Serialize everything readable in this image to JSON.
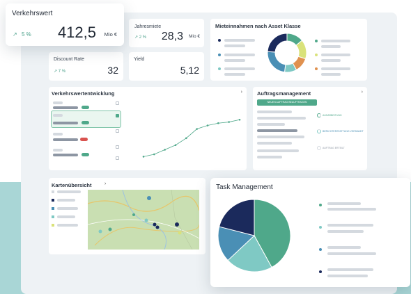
{
  "colors": {
    "navy": "#1b2a5c",
    "blue": "#4a8fb5",
    "teal_light": "#7fc9c4",
    "green": "#4fa88a",
    "lime": "#d9e27a",
    "orange": "#e0914f",
    "accent_button": "#4fa88a"
  },
  "kpi_verkehrswert": {
    "title": "Verkehrswert",
    "change": "5 %",
    "value": "412,5",
    "unit": "Mio €",
    "icon": "trend-up-arrow-icon"
  },
  "kpi_jahresmiete": {
    "title": "Jahresmiete",
    "change": "2 %",
    "value": "28,3",
    "unit": "Mio €"
  },
  "kpi_discount": {
    "title": "Discount Rate",
    "change": "7 %",
    "value": "32"
  },
  "kpi_yield": {
    "title": "Yield",
    "value": "5,12"
  },
  "mieteinnahmen": {
    "title": "Mieteinnahmen nach Asset Klasse"
  },
  "verkehrswertentwicklung": {
    "title": "Verkehrswertentwicklung",
    "chevron": "›"
  },
  "auftragsmanagement": {
    "title": "Auftragsmanagement",
    "chevron": "›",
    "button_label": "NEUEN AUFTRAG BEAUFTRAGEN",
    "statuses": [
      "AUSARBEITUNG",
      "BERICHTERSTATTUNG VERSANDT",
      "AUFTRAG ERTEILT"
    ]
  },
  "kartenuebersicht": {
    "title": "Kartenübersicht",
    "chevron": "›"
  },
  "task_management": {
    "title": "Task Management"
  },
  "chart_data": [
    {
      "type": "pie",
      "name": "donut",
      "values": [
        14,
        16,
        12,
        10,
        24,
        24
      ],
      "colors": [
        "#4fa88a",
        "#d9e27a",
        "#e0914f",
        "#7fc9c4",
        "#4a8fb5",
        "#1b2a5c"
      ]
    },
    {
      "type": "line",
      "x": [
        1,
        2,
        3,
        4,
        5,
        6,
        7,
        8,
        9,
        10
      ],
      "y": [
        8,
        12,
        20,
        28,
        40,
        56,
        62,
        66,
        68,
        72
      ],
      "ylim": [
        0,
        100
      ]
    },
    {
      "type": "pie",
      "name": "task-pie",
      "values": [
        42,
        21,
        16,
        21
      ],
      "colors": [
        "#4fa88a",
        "#7fc9c4",
        "#4a8fb5",
        "#1b2a5c"
      ]
    }
  ]
}
